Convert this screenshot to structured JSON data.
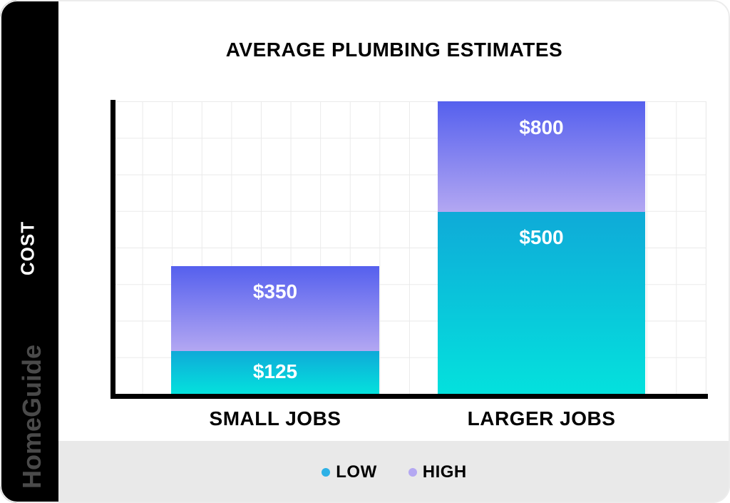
{
  "sidebar": {
    "ylabel": "COST",
    "brand": "HomeGuide"
  },
  "chart": {
    "title": "AVERAGE PLUMBING ESTIMATES"
  },
  "chart_data": {
    "type": "bar",
    "variant": "stacked",
    "title": "AVERAGE PLUMBING ESTIMATES",
    "categories": [
      "SMALL JOBS",
      "LARGER JOBS"
    ],
    "series": [
      {
        "name": "LOW",
        "values": [
          125,
          500
        ]
      },
      {
        "name": "HIGH",
        "values": [
          350,
          800
        ]
      }
    ],
    "value_labels": {
      "SMALL JOBS": {
        "LOW": "$125",
        "HIGH": "$350"
      },
      "LARGER JOBS": {
        "LOW": "$500",
        "HIGH": "$800"
      }
    },
    "ylabel": "COST",
    "grid": true,
    "axis_tick_labels_shown": false,
    "legend_position": "bottom",
    "not_to_scale": true
  },
  "bars": [
    {
      "category": "SMALL JOBS",
      "low_label": "$125",
      "high_label": "$350"
    },
    {
      "category": "LARGER JOBS",
      "low_label": "$500",
      "high_label": "$800"
    }
  ],
  "legend": {
    "items": [
      {
        "label": "LOW"
      },
      {
        "label": "HIGH"
      }
    ]
  },
  "colors": {
    "high_top": "#5560ee",
    "high_bottom": "#b3a7f2",
    "low_top": "#0faad8",
    "low_bottom": "#04e1dd",
    "legend_low": "#2eb1e6",
    "legend_high": "#b4a8f2",
    "grid": "#eaeaea",
    "footer": "#e9e9e9",
    "brand": "#4a4a4a",
    "edge": "#ececec"
  }
}
